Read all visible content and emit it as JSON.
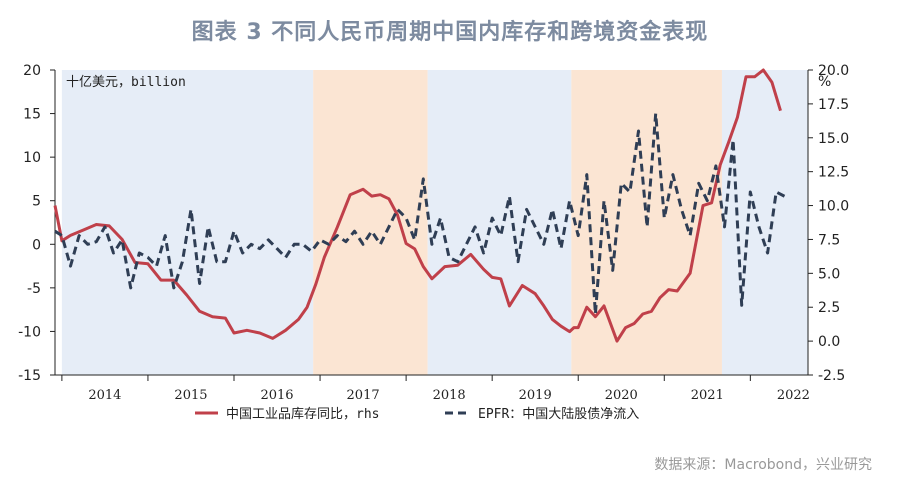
{
  "chart_data": {
    "type": "line",
    "title": "图表 3 不同人民币周期中国内库存和跨境资金表现",
    "left_unit": "十亿美元，billion",
    "right_unit": "%",
    "left_ylim": [
      -15,
      20
    ],
    "left_ticks": [
      "20",
      "15",
      "10",
      "5",
      "0",
      "-5",
      "-10",
      "-15"
    ],
    "right_ylim": [
      -2.5,
      20.0
    ],
    "right_ticks": [
      "20.0",
      "17.5",
      "15.0",
      "12.5",
      "10.0",
      "7.5",
      "5.0",
      "2.5",
      "0.0",
      "-2.5"
    ],
    "x_ticks": [
      "2014",
      "2015",
      "2016",
      "2017",
      "2018",
      "2019",
      "2020",
      "2021",
      "2022"
    ],
    "shaded_periods": [
      {
        "start": 2014.0,
        "end": 2016.92,
        "color": "#e6edf7"
      },
      {
        "start": 2016.92,
        "end": 2018.25,
        "color": "#fbe5d3"
      },
      {
        "start": 2018.25,
        "end": 2019.92,
        "color": "#e6edf7"
      },
      {
        "start": 2019.92,
        "end": 2021.67,
        "color": "#fbe5d3"
      },
      {
        "start": 2021.67,
        "end": 2022.67,
        "color": "#e6edf7"
      }
    ],
    "series": [
      {
        "name": "中国工业品库存同比，rhs",
        "axis": "right",
        "color": "#c0404a",
        "style": "solid",
        "x": [
          2013.92,
          2014.0,
          2014.1,
          2014.25,
          2014.4,
          2014.55,
          2014.7,
          2014.85,
          2015.0,
          2015.15,
          2015.3,
          2015.45,
          2015.6,
          2015.75,
          2015.9,
          2016.0,
          2016.15,
          2016.3,
          2016.45,
          2016.6,
          2016.75,
          2016.85,
          2016.95,
          2017.05,
          2017.2,
          2017.35,
          2017.5,
          2017.6,
          2017.7,
          2017.8,
          2017.9,
          2018.0,
          2018.1,
          2018.2,
          2018.3,
          2018.45,
          2018.6,
          2018.75,
          2018.9,
          2019.0,
          2019.1,
          2019.2,
          2019.35,
          2019.5,
          2019.6,
          2019.7,
          2019.8,
          2019.9,
          2019.95,
          2020.0,
          2020.1,
          2020.2,
          2020.3,
          2020.45,
          2020.55,
          2020.65,
          2020.75,
          2020.85,
          2020.95,
          2021.05,
          2021.15,
          2021.3,
          2021.45,
          2021.55,
          2021.65,
          2021.75,
          2021.85,
          2021.95,
          2022.05,
          2022.15,
          2022.25,
          2022.35
        ],
        "values": [
          10.0,
          7.4,
          7.8,
          8.2,
          8.6,
          8.5,
          7.5,
          5.8,
          5.7,
          4.5,
          4.5,
          3.4,
          2.2,
          1.8,
          1.7,
          0.6,
          0.8,
          0.6,
          0.2,
          0.8,
          1.6,
          2.5,
          4.2,
          6.2,
          8.4,
          10.8,
          11.2,
          10.7,
          10.8,
          10.5,
          9.3,
          7.2,
          6.8,
          5.5,
          4.6,
          5.5,
          5.6,
          6.4,
          5.3,
          4.7,
          4.6,
          2.6,
          4.1,
          3.5,
          2.6,
          1.6,
          1.1,
          0.7,
          1.0,
          1.0,
          2.5,
          1.8,
          2.6,
          0.0,
          1.0,
          1.3,
          2.0,
          2.2,
          3.2,
          3.8,
          3.7,
          5.0,
          10.0,
          10.2,
          13.0,
          14.7,
          16.5,
          19.5,
          19.5,
          20.0,
          19.1,
          17.0
        ]
      },
      {
        "name": "EPFR：中国大陆股债净流入",
        "axis": "left",
        "color": "#2f3e55",
        "style": "dashed",
        "x": [
          2013.92,
          2014.0,
          2014.1,
          2014.2,
          2014.3,
          2014.4,
          2014.5,
          2014.6,
          2014.7,
          2014.8,
          2014.9,
          2015.0,
          2015.1,
          2015.2,
          2015.3,
          2015.4,
          2015.5,
          2015.6,
          2015.7,
          2015.8,
          2015.9,
          2016.0,
          2016.1,
          2016.2,
          2016.3,
          2016.4,
          2016.5,
          2016.6,
          2016.7,
          2016.8,
          2016.9,
          2017.0,
          2017.1,
          2017.2,
          2017.3,
          2017.4,
          2017.5,
          2017.6,
          2017.7,
          2017.8,
          2017.9,
          2018.0,
          2018.1,
          2018.2,
          2018.3,
          2018.4,
          2018.5,
          2018.6,
          2018.7,
          2018.8,
          2018.9,
          2019.0,
          2019.1,
          2019.2,
          2019.3,
          2019.4,
          2019.5,
          2019.6,
          2019.7,
          2019.8,
          2019.9,
          2020.0,
          2020.1,
          2020.2,
          2020.3,
          2020.4,
          2020.5,
          2020.6,
          2020.7,
          2020.8,
          2020.9,
          2021.0,
          2021.1,
          2021.2,
          2021.3,
          2021.4,
          2021.5,
          2021.6,
          2021.7,
          2021.8,
          2021.9,
          2022.0,
          2022.1,
          2022.2,
          2022.3,
          2022.4
        ],
        "values": [
          1.5,
          1.0,
          -2.5,
          1.0,
          0.0,
          0.3,
          2.0,
          -1.0,
          0.5,
          -5.0,
          -1.0,
          -1.5,
          -2.5,
          1.0,
          -5.0,
          -2.0,
          4.0,
          -4.5,
          2.0,
          -2.0,
          -2.0,
          1.5,
          -1.0,
          0.0,
          -0.5,
          0.5,
          -0.5,
          -1.5,
          0.0,
          0.0,
          -0.8,
          0.5,
          0.0,
          1.0,
          0.3,
          1.5,
          0.0,
          1.5,
          0.0,
          2.0,
          4.0,
          3.0,
          0.5,
          7.5,
          0.0,
          3.0,
          -1.5,
          -2.0,
          0.0,
          2.0,
          -1.0,
          3.0,
          1.0,
          5.5,
          -2.0,
          4.0,
          2.0,
          0.0,
          4.0,
          -0.5,
          5.0,
          1.0,
          8.0,
          -8.0,
          5.0,
          -3.0,
          7.0,
          6.0,
          13.0,
          2.0,
          15.0,
          3.0,
          8.0,
          4.0,
          1.0,
          7.0,
          5.0,
          9.0,
          2.0,
          12.0,
          -7.0,
          6.0,
          2.0,
          -1.0,
          6.0,
          5.5
        ]
      }
    ]
  },
  "source": "数据来源：Macrobond，兴业研究"
}
